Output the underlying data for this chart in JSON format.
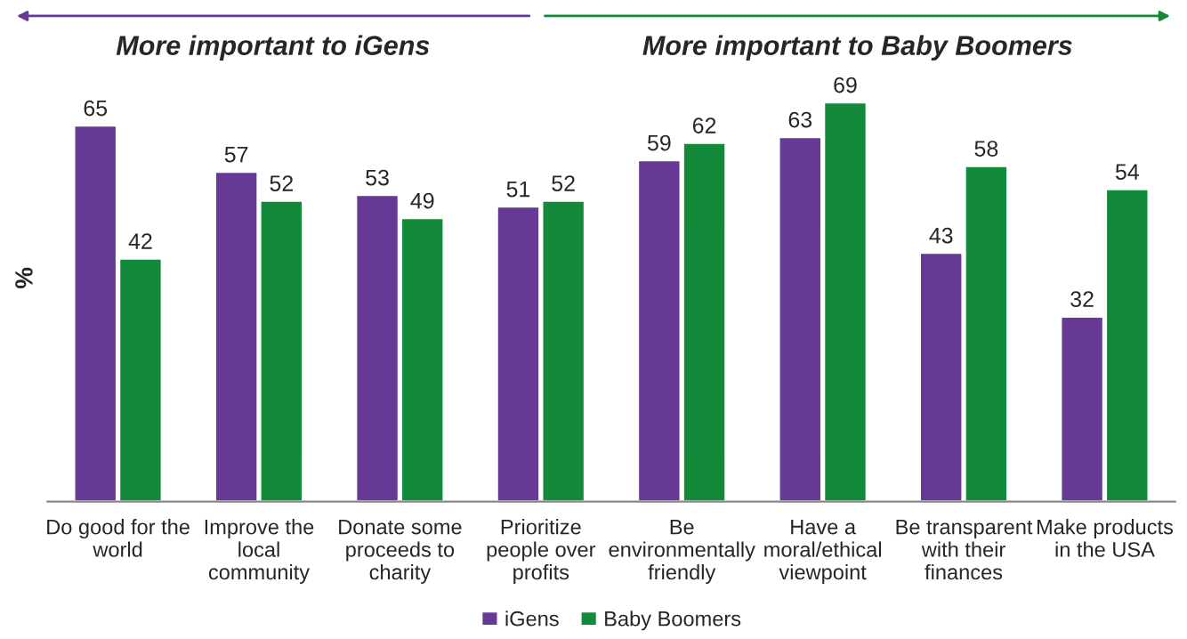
{
  "chart_data": {
    "type": "bar",
    "ylabel": "%",
    "categories": [
      "Do good for the\nworld",
      "Improve the\nlocal\ncommunity",
      "Donate some\nproceeds to\ncharity",
      "Prioritize\npeople over\nprofits",
      "Be\nenvironmentally\nfriendly",
      "Have a\nmoral/ethical\nviewpoint",
      "Be transparent\nwith their\nfinances",
      "Make products\nin the USA"
    ],
    "series": [
      {
        "name": "iGens",
        "color": "#663a94",
        "values": [
          65,
          57,
          53,
          51,
          59,
          63,
          43,
          32
        ]
      },
      {
        "name": "Baby Boomers",
        "color": "#138a3a",
        "values": [
          42,
          52,
          49,
          52,
          62,
          69,
          58,
          54
        ]
      }
    ],
    "annotations": [
      "More important to iGens",
      "More important to Baby Boomers"
    ],
    "data_labels": true,
    "tick_labels": "x",
    "legend": "bottom",
    "grid": false
  }
}
